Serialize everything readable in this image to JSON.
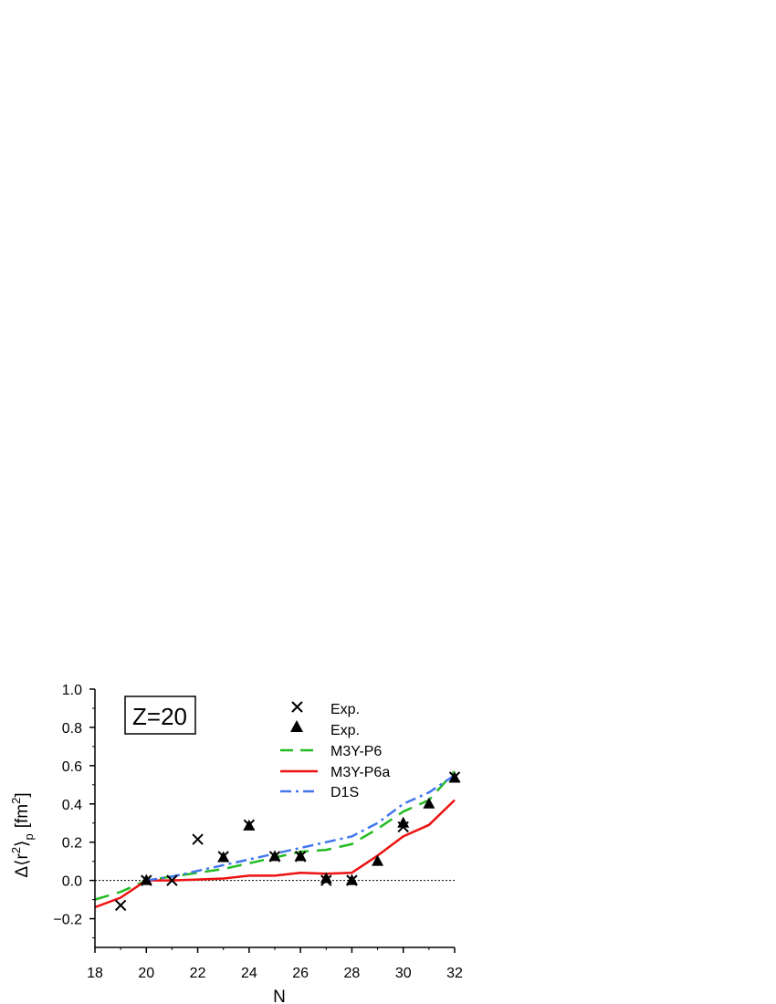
{
  "chart_data": {
    "type": "line",
    "panel_label": "Z=20",
    "xlabel": "N",
    "ylabel": {
      "base": "Δ⟨r",
      "sup": "2",
      "close": "⟩",
      "sub": "p",
      "unit": "[fm",
      "unit_sup": "2",
      "unit_close": "]"
    },
    "xlim": [
      18,
      32
    ],
    "ylim": [
      -0.35,
      1.0
    ],
    "xticks": [
      18,
      20,
      22,
      24,
      26,
      28,
      30,
      32
    ],
    "yticks": [
      -0.2,
      0.0,
      0.2,
      0.4,
      0.6,
      0.8,
      1.0
    ],
    "ytick_labels": [
      "−0.2",
      "0.0",
      "0.2",
      "0.4",
      "0.6",
      "0.8",
      "1.0"
    ],
    "zero_line": true,
    "legend_position": "top-right",
    "series": [
      {
        "name": "Exp.",
        "kind": "marker",
        "marker": "cross",
        "color": "#000000",
        "x": [
          19,
          20,
          21,
          22,
          23,
          24,
          25,
          26,
          27,
          28,
          30,
          32
        ],
        "y": [
          -0.13,
          0.0,
          0.0,
          0.215,
          0.125,
          0.29,
          0.125,
          0.125,
          0.0,
          0.0,
          0.28,
          0.54
        ]
      },
      {
        "name": "Exp.",
        "kind": "marker",
        "marker": "triangle",
        "color": "#000000",
        "x": [
          20,
          23,
          24,
          25,
          26,
          27,
          28,
          29,
          30,
          31,
          32
        ],
        "y": [
          0.0,
          0.12,
          0.285,
          0.125,
          0.125,
          0.01,
          0.0,
          0.1,
          0.3,
          0.4,
          0.535
        ]
      },
      {
        "name": "M3Y-P6",
        "kind": "line",
        "dash": "16 9",
        "color": "#22bb22",
        "width": 2.5,
        "x": [
          18,
          19,
          20,
          21,
          22,
          23,
          24,
          25,
          26,
          27,
          28,
          29,
          30,
          31,
          32
        ],
        "y": [
          -0.1,
          -0.06,
          0.0,
          0.02,
          0.04,
          0.06,
          0.09,
          0.12,
          0.15,
          0.16,
          0.19,
          0.27,
          0.36,
          0.42,
          0.57
        ]
      },
      {
        "name": "M3Y-P6a",
        "kind": "line",
        "dash": "",
        "color": "#ee1111",
        "width": 2.5,
        "x": [
          18,
          19,
          20,
          21,
          22,
          23,
          24,
          25,
          26,
          27,
          28,
          29,
          30,
          31,
          32
        ],
        "y": [
          -0.14,
          -0.09,
          0.0,
          0.0,
          0.005,
          0.01,
          0.025,
          0.025,
          0.04,
          0.035,
          0.04,
          0.13,
          0.23,
          0.29,
          0.42
        ]
      },
      {
        "name": "D1S",
        "kind": "line",
        "dash": "12 5 3 5",
        "color": "#4477ee",
        "width": 2.5,
        "x": [
          20,
          21,
          22,
          23,
          24,
          25,
          26,
          27,
          28,
          29,
          30,
          31,
          32
        ],
        "y": [
          0.0,
          0.02,
          0.05,
          0.08,
          0.11,
          0.14,
          0.17,
          0.2,
          0.23,
          0.3,
          0.4,
          0.46,
          0.55
        ]
      }
    ]
  }
}
